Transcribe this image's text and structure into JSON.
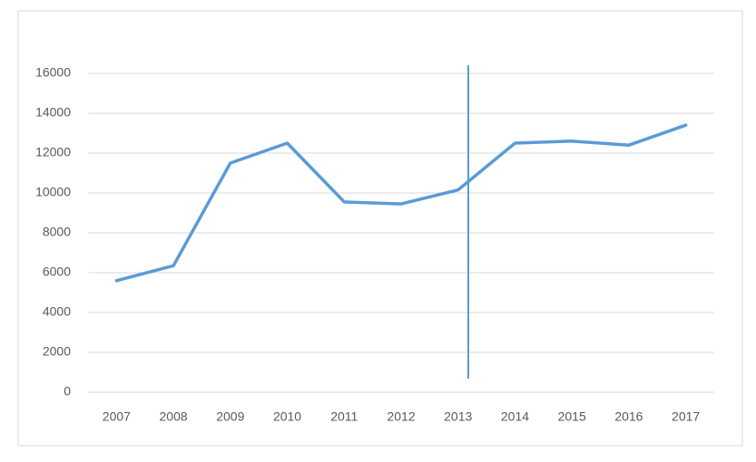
{
  "chart_data": {
    "type": "line",
    "categories": [
      "2007",
      "2008",
      "2009",
      "2010",
      "2011",
      "2012",
      "2013",
      "2014",
      "2015",
      "2016",
      "2017"
    ],
    "values": [
      5600,
      6350,
      11500,
      12500,
      9550,
      9450,
      10150,
      12500,
      12600,
      12400,
      13400
    ],
    "color": "#5b9bd5",
    "ylim": [
      0,
      16000
    ],
    "yticks": [
      0,
      2000,
      4000,
      6000,
      8000,
      10000,
      12000,
      14000,
      16000
    ],
    "grid": true
  }
}
